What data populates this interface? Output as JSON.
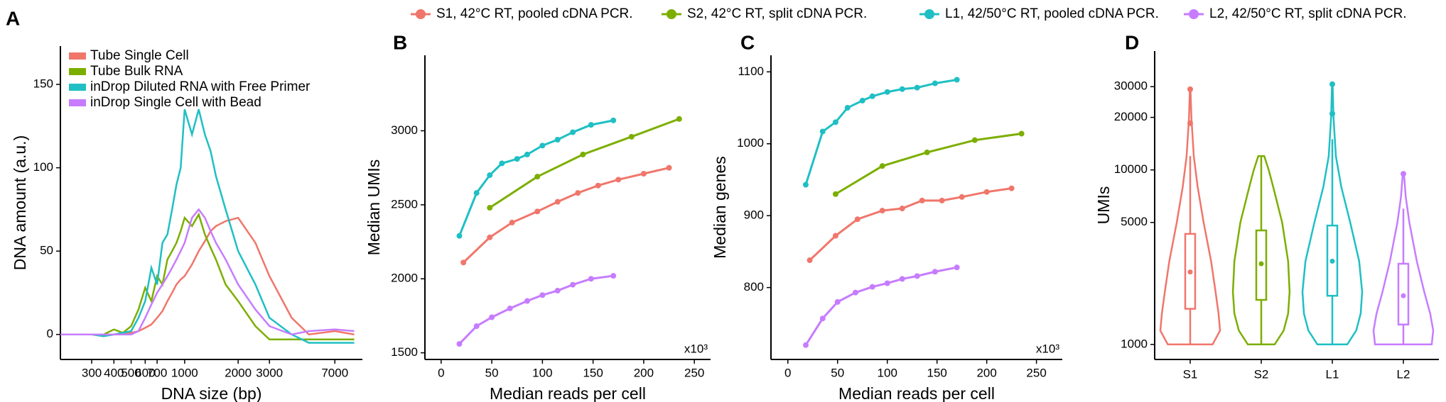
{
  "chart_data": [
    {
      "type": "line",
      "panel_label": "A",
      "xlabel": "DNA size (bp)",
      "ylabel": "DNA amount (a.u.)",
      "xscale": "log",
      "xlim": [
        200,
        10000
      ],
      "xticks": [
        300,
        400,
        500,
        600,
        700,
        1000,
        2000,
        3000,
        7000
      ],
      "ylim": [
        -15,
        173
      ],
      "yticks": [
        0,
        50,
        100,
        150
      ],
      "legend": "top-left",
      "x": [
        200,
        250,
        300,
        350,
        400,
        450,
        500,
        550,
        600,
        650,
        700,
        750,
        800,
        850,
        900,
        950,
        1000,
        1100,
        1200,
        1300,
        1400,
        1500,
        1700,
        2000,
        2500,
        3000,
        4000,
        5000,
        7000,
        9000
      ],
      "series": [
        {
          "name": "Tube Single Cell",
          "color": "#f0766b",
          "values": [
            0,
            0,
            0,
            -1,
            0,
            0,
            1,
            2,
            4,
            6,
            10,
            14,
            20,
            25,
            30,
            33,
            35,
            42,
            50,
            56,
            62,
            65,
            68,
            70,
            55,
            35,
            10,
            0,
            2,
            0
          ]
        },
        {
          "name": "Tube Bulk RNA",
          "color": "#7cae00",
          "values": [
            0,
            0,
            0,
            0,
            3,
            1,
            5,
            15,
            28,
            20,
            35,
            30,
            45,
            50,
            55,
            62,
            70,
            65,
            72,
            60,
            52,
            45,
            30,
            20,
            5,
            -3,
            -3,
            -3,
            -3,
            -3
          ]
        },
        {
          "name": "inDrop Diluted RNA with Free Primer",
          "color": "#1fbfc4",
          "values": [
            0,
            0,
            0,
            -1,
            0,
            1,
            2,
            10,
            20,
            40,
            30,
            55,
            60,
            75,
            90,
            100,
            135,
            120,
            135,
            120,
            110,
            95,
            75,
            50,
            30,
            10,
            0,
            -5,
            -5,
            -5
          ]
        },
        {
          "name": "inDrop Single Cell with Bead",
          "color": "#c77cff",
          "values": [
            0,
            0,
            0,
            0,
            0,
            0,
            0,
            2,
            10,
            18,
            25,
            30,
            35,
            40,
            45,
            50,
            55,
            70,
            75,
            70,
            62,
            55,
            45,
            30,
            15,
            5,
            0,
            2,
            3,
            2
          ]
        }
      ]
    },
    {
      "type": "line",
      "panel_label": "B",
      "xlabel": "Median reads per cell",
      "ylabel": "Median UMIs",
      "annotation": "x10³",
      "xlim": [
        -16,
        266
      ],
      "xticks": [
        0,
        50,
        100,
        150,
        200,
        250
      ],
      "ylim": [
        1455,
        3510
      ],
      "yticks": [
        1500,
        2000,
        2500,
        3000
      ],
      "markers": true,
      "series": [
        {
          "name": "S1, 42°C RT, pooled cDNA PCR.",
          "color": "#f0766b",
          "x": [
            22,
            48,
            70,
            95,
            115,
            135,
            155,
            175,
            200,
            225
          ],
          "values": [
            2110,
            2280,
            2380,
            2455,
            2520,
            2580,
            2630,
            2670,
            2710,
            2750
          ]
        },
        {
          "name": "S2, 42°C RT, split cDNA PCR.",
          "color": "#7cae00",
          "x": [
            48,
            95,
            140,
            188,
            235
          ],
          "values": [
            2480,
            2690,
            2840,
            2960,
            3080
          ]
        },
        {
          "name": "L1, 42/50°C RT, pooled cDNA PCR.",
          "color": "#1fbfc4",
          "x": [
            18,
            35,
            48,
            60,
            75,
            85,
            100,
            115,
            130,
            148,
            170
          ],
          "values": [
            2290,
            2580,
            2700,
            2780,
            2810,
            2840,
            2900,
            2940,
            2990,
            3040,
            3070
          ]
        },
        {
          "name": "L2, 42/50°C RT, split cDNA PCR.",
          "color": "#c77cff",
          "x": [
            18,
            35,
            50,
            68,
            85,
            100,
            115,
            130,
            148,
            170
          ],
          "values": [
            1560,
            1680,
            1740,
            1800,
            1850,
            1890,
            1920,
            1960,
            2000,
            2020
          ]
        }
      ]
    },
    {
      "type": "line",
      "panel_label": "C",
      "xlabel": "Median reads per cell",
      "ylabel": "Median genes",
      "annotation": "x10³",
      "xlim": [
        -17,
        276
      ],
      "xticks": [
        0,
        50,
        100,
        150,
        200,
        250
      ],
      "ylim": [
        700,
        1123
      ],
      "yticks": [
        800,
        900,
        1000,
        1100
      ],
      "markers": true,
      "series": [
        {
          "color": "#f0766b",
          "x": [
            22,
            48,
            70,
            95,
            115,
            135,
            155,
            175,
            200,
            225
          ],
          "values": [
            838,
            872,
            895,
            907,
            910,
            921,
            921,
            926,
            933,
            938
          ]
        },
        {
          "color": "#7cae00",
          "x": [
            48,
            95,
            140,
            188,
            235
          ],
          "values": [
            930,
            969,
            988,
            1005,
            1014
          ]
        },
        {
          "color": "#1fbfc4",
          "x": [
            18,
            35,
            48,
            60,
            75,
            85,
            100,
            115,
            130,
            148,
            170
          ],
          "values": [
            943,
            1017,
            1030,
            1050,
            1060,
            1066,
            1072,
            1076,
            1078,
            1084,
            1089
          ]
        },
        {
          "color": "#c77cff",
          "x": [
            18,
            35,
            50,
            68,
            85,
            100,
            115,
            130,
            148,
            170
          ],
          "values": [
            720,
            757,
            780,
            793,
            801,
            806,
            812,
            816,
            822,
            828
          ]
        }
      ]
    },
    {
      "type": "violin",
      "panel_label": "D",
      "ylabel": "UMIs",
      "yscale": "log",
      "ylim": [
        820,
        48000
      ],
      "yticks": [
        1000,
        5000,
        10000,
        20000,
        30000
      ],
      "categories": [
        "S1",
        "S2",
        "L1",
        "L2"
      ],
      "groups": [
        {
          "color": "#f0766b",
          "density_y": [
            1000,
            1200,
            1500,
            2000,
            3000,
            5000,
            8000,
            12000,
            20000,
            29000
          ],
          "density": [
            0.75,
            1,
            0.95,
            0.85,
            0.7,
            0.45,
            0.25,
            0.12,
            0.04,
            0.01
          ],
          "low": 1000,
          "q1": 1600,
          "median": 2600,
          "q3": 4300,
          "high": 12000,
          "outliers": [
            18500,
            29000
          ]
        },
        {
          "color": "#7cae00",
          "density_y": [
            1000,
            1200,
            1500,
            2000,
            3000,
            5000,
            8000,
            10000,
            12000
          ],
          "density": [
            0.45,
            0.75,
            0.9,
            0.95,
            0.9,
            0.7,
            0.4,
            0.25,
            0.1
          ],
          "low": 1000,
          "q1": 1800,
          "median": 2900,
          "q3": 4500,
          "high": 12000,
          "outliers": []
        },
        {
          "color": "#1fbfc4",
          "density_y": [
            1000,
            1200,
            1500,
            2000,
            3000,
            5000,
            8000,
            12000,
            20000,
            31000
          ],
          "density": [
            0.5,
            0.8,
            0.95,
            1,
            0.9,
            0.6,
            0.3,
            0.12,
            0.04,
            0.01
          ],
          "low": 1000,
          "q1": 1900,
          "median": 3000,
          "q3": 4800,
          "high": 15000,
          "outliers": [
            21000,
            31000
          ]
        },
        {
          "color": "#c77cff",
          "density_y": [
            1000,
            1200,
            1500,
            2000,
            3000,
            5000,
            7000,
            9500
          ],
          "density": [
            0.95,
            1,
            0.9,
            0.7,
            0.45,
            0.2,
            0.08,
            0.02
          ],
          "low": 1000,
          "q1": 1300,
          "median": 1900,
          "q3": 2900,
          "high": 6000,
          "outliers": [
            9500
          ]
        }
      ]
    }
  ]
}
